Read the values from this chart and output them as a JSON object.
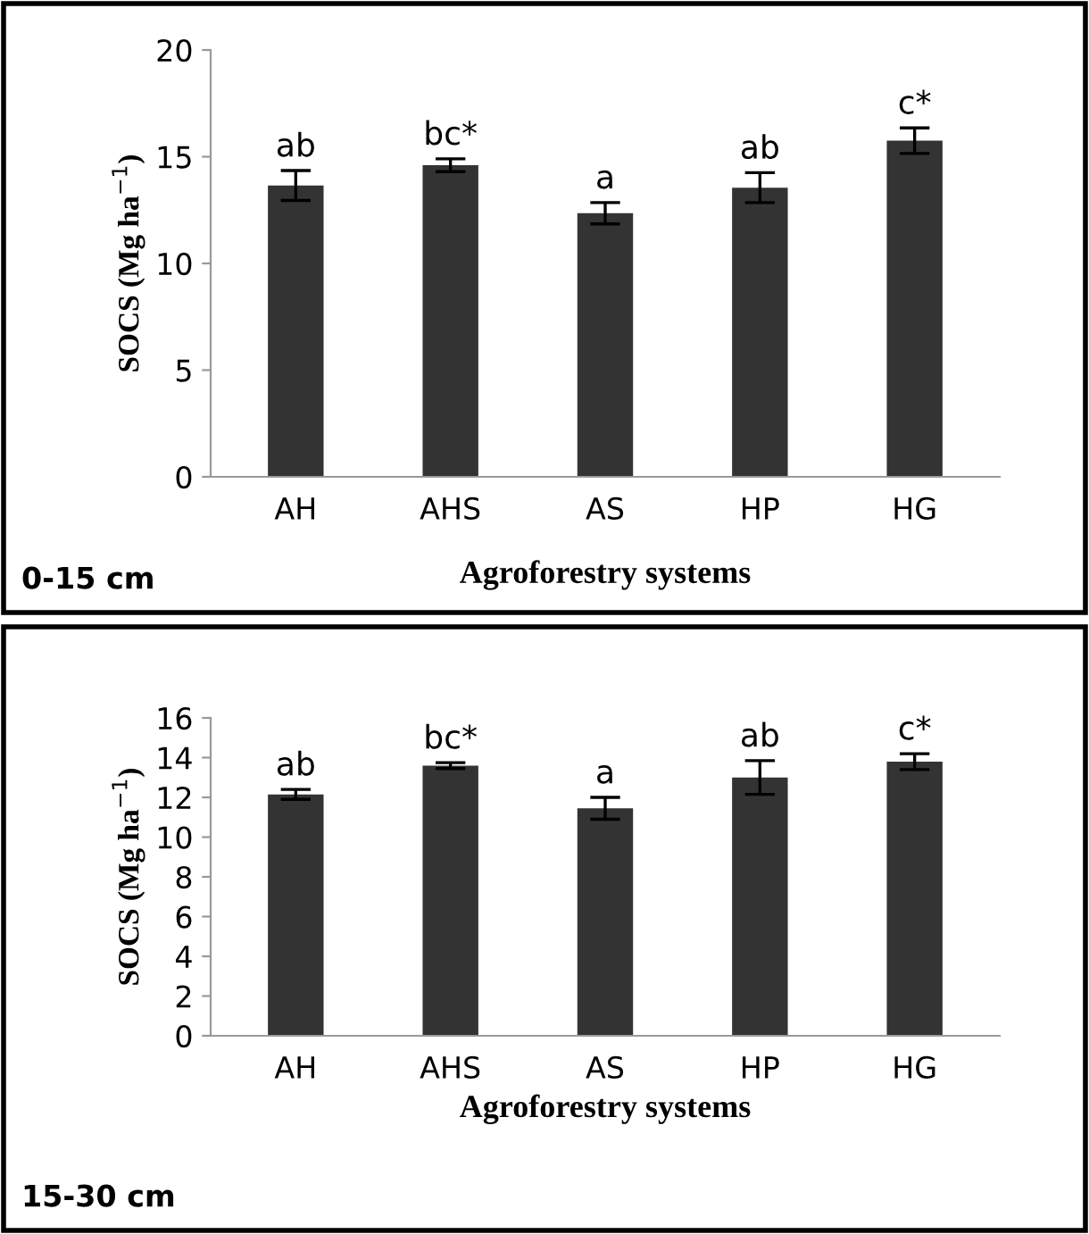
{
  "chart_data": [
    {
      "type": "bar",
      "categories": [
        "AH",
        "AHS",
        "AS",
        "HP",
        "HG"
      ],
      "values": [
        13.65,
        14.6,
        12.35,
        13.55,
        15.75
      ],
      "errors": [
        0.7,
        0.3,
        0.5,
        0.7,
        0.6
      ],
      "color": "#333333",
      "ylabel": "SOCS (Mg ha$^{−1}$)",
      "xlabel": "Agroforestry systems",
      "ylim": [
        0,
        20
      ],
      "yticks": [
        0,
        5,
        10,
        15,
        20
      ],
      "grid": false,
      "legend": false,
      "annotations": [
        {
          "text": "ab",
          "x": "AH",
          "y": 14.35
        },
        {
          "text": "bc*",
          "x": "AHS",
          "y": 14.9
        },
        {
          "text": "a",
          "x": "AS",
          "y": 12.85
        },
        {
          "text": "ab",
          "x": "HP",
          "y": 14.25
        },
        {
          "text": "c*",
          "x": "HG",
          "y": 16.35
        },
        "0-15 cm"
      ]
    },
    {
      "type": "bar",
      "categories": [
        "AH",
        "AHS",
        "AS",
        "HP",
        "HG"
      ],
      "values": [
        12.15,
        13.6,
        11.45,
        13.0,
        13.8
      ],
      "errors": [
        0.25,
        0.15,
        0.55,
        0.85,
        0.4
      ],
      "color": "#333333",
      "ylabel": "SOCS (Mg ha$^{−1}$)",
      "xlabel": "Agroforestry systems",
      "ylim": [
        0,
        16
      ],
      "yticks": [
        0,
        2,
        4,
        6,
        8,
        10,
        12,
        14,
        16
      ],
      "grid": false,
      "legend": false,
      "annotations": [
        {
          "text": "ab",
          "x": "AH",
          "y": 12.4
        },
        {
          "text": "bc*",
          "x": "AHS",
          "y": 13.75
        },
        {
          "text": "a",
          "x": "AS",
          "y": 12.0
        },
        {
          "text": "ab",
          "x": "HP",
          "y": 13.85
        },
        {
          "text": "c*",
          "x": "HG",
          "y": 14.2
        },
        "15-30 cm"
      ]
    }
  ]
}
